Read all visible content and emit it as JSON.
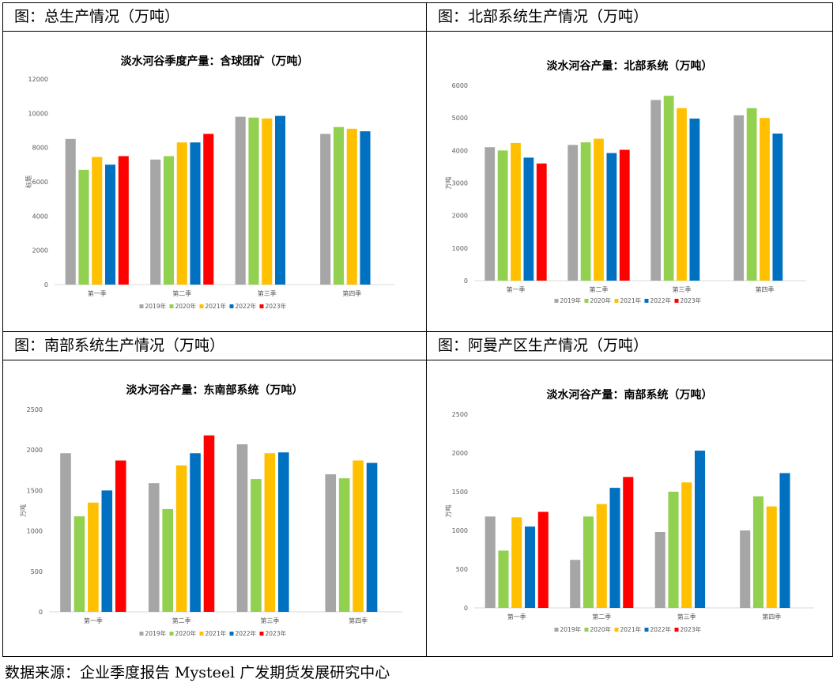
{
  "footer": {
    "source": "数据来源：企业季度报告 Mysteel 广发期货发展研究中心"
  },
  "panels": [
    {
      "header": "图：总生产情况（万吨）"
    },
    {
      "header": "图：北部系统生产情况（万吨）"
    },
    {
      "header": "图：南部系统生产情况（万吨）"
    },
    {
      "header": "图：阿曼产区生产情况（万吨）"
    }
  ],
  "colors": {
    "2019年": "#a6a6a6",
    "2020年": "#92d050",
    "2021年": "#ffc000",
    "2022年": "#0070c0",
    "2023年": "#ff0000"
  },
  "chart_data": [
    {
      "type": "bar",
      "title": "淡水河谷季度产量：含球团矿（万吨）",
      "ylabel": "标题",
      "categories": [
        "第一季",
        "第二季",
        "第三季",
        "第四季"
      ],
      "ylim": [
        0,
        12000
      ],
      "yticks": [
        0,
        2000,
        4000,
        6000,
        8000,
        10000,
        12000
      ],
      "legend_position": "bottom",
      "grid": false,
      "series": [
        {
          "name": "2019年",
          "values": [
            8500,
            7300,
            9800,
            8800
          ]
        },
        {
          "name": "2020年",
          "values": [
            6700,
            7500,
            9750,
            9200
          ]
        },
        {
          "name": "2021年",
          "values": [
            7450,
            8300,
            9700,
            9100
          ]
        },
        {
          "name": "2022年",
          "values": [
            7000,
            8300,
            9850,
            8950
          ]
        },
        {
          "name": "2023年",
          "values": [
            7500,
            8800,
            null,
            null
          ]
        }
      ]
    },
    {
      "type": "bar",
      "title": "淡水河谷产量：北部系统（万吨）",
      "ylabel": "万吨",
      "categories": [
        "第一季",
        "第二季",
        "第三季",
        "第四季"
      ],
      "ylim": [
        0,
        6000
      ],
      "yticks": [
        0,
        1000,
        2000,
        3000,
        4000,
        5000,
        6000
      ],
      "legend_position": "bottom",
      "grid": false,
      "series": [
        {
          "name": "2019年",
          "values": [
            4100,
            4170,
            5550,
            5080
          ]
        },
        {
          "name": "2020年",
          "values": [
            4000,
            4250,
            5680,
            5300
          ]
        },
        {
          "name": "2021年",
          "values": [
            4230,
            4360,
            5300,
            5000
          ]
        },
        {
          "name": "2022年",
          "values": [
            3780,
            3920,
            4980,
            4520
          ]
        },
        {
          "name": "2023年",
          "values": [
            3600,
            4020,
            null,
            null
          ]
        }
      ]
    },
    {
      "type": "bar",
      "title": "淡水河谷产量：东南部系统（万吨）",
      "ylabel": "万吨",
      "categories": [
        "第一季",
        "第二季",
        "第三季",
        "第四季"
      ],
      "ylim": [
        0,
        2500
      ],
      "yticks": [
        0,
        500,
        1000,
        1500,
        2000,
        2500
      ],
      "legend_position": "bottom",
      "grid": false,
      "series": [
        {
          "name": "2019年",
          "values": [
            1960,
            1590,
            2070,
            1700
          ]
        },
        {
          "name": "2020年",
          "values": [
            1180,
            1270,
            1640,
            1650
          ]
        },
        {
          "name": "2021年",
          "values": [
            1350,
            1810,
            1960,
            1870
          ]
        },
        {
          "name": "2022年",
          "values": [
            1500,
            1960,
            1970,
            1840
          ]
        },
        {
          "name": "2023年",
          "values": [
            1870,
            2180,
            null,
            null
          ]
        }
      ]
    },
    {
      "type": "bar",
      "title": "淡水河谷产量：南部系统（万吨）",
      "ylabel": "万吨",
      "categories": [
        "第一季",
        "第二季",
        "第三季",
        "第四季"
      ],
      "ylim": [
        0,
        2500
      ],
      "yticks": [
        0,
        500,
        1000,
        1500,
        2000,
        2500
      ],
      "legend_position": "bottom",
      "grid": false,
      "series": [
        {
          "name": "2019年",
          "values": [
            1180,
            620,
            980,
            1000
          ]
        },
        {
          "name": "2020年",
          "values": [
            740,
            1180,
            1500,
            1440
          ]
        },
        {
          "name": "2021年",
          "values": [
            1170,
            1340,
            1620,
            1310
          ]
        },
        {
          "name": "2022年",
          "values": [
            1050,
            1550,
            2030,
            1740
          ]
        },
        {
          "name": "2023年",
          "values": [
            1240,
            1690,
            null,
            null
          ]
        }
      ]
    }
  ]
}
